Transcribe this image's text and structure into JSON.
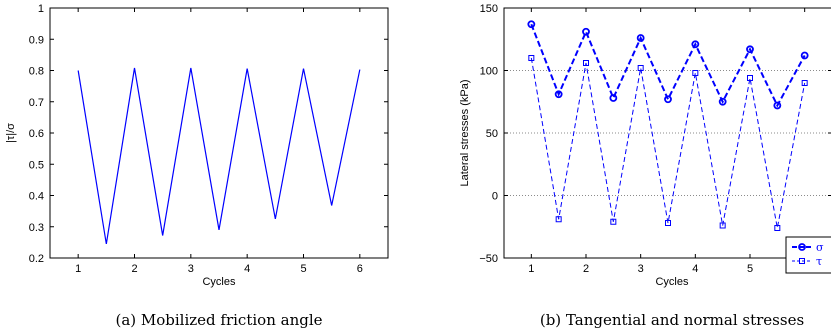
{
  "chart_data": [
    {
      "type": "line",
      "caption": "(a) Mobilized friction angle",
      "xlabel": "Cycles",
      "ylabel": "|τ|/σ",
      "xlim": [
        0.5,
        6.5
      ],
      "ylim": [
        0.2,
        1.0
      ],
      "xticks": [
        "1",
        "2",
        "3",
        "4",
        "5",
        "6"
      ],
      "yticks": [
        "0.2",
        "0.3",
        "0.4",
        "0.5",
        "0.6",
        "0.7",
        "0.8",
        "0.9",
        "1"
      ],
      "grid": false,
      "series": [
        {
          "color": "#0000ff",
          "x": [
            1,
            1.5,
            2,
            2.5,
            3,
            3.5,
            4,
            4.5,
            5,
            5.5,
            6
          ],
          "y": [
            0.8,
            0.245,
            0.808,
            0.272,
            0.808,
            0.29,
            0.806,
            0.325,
            0.806,
            0.368,
            0.803
          ]
        }
      ]
    },
    {
      "type": "line",
      "caption": "(b) Tangential and normal stresses",
      "xlabel": "Cycles",
      "ylabel": "Lateral stresses (kPa)",
      "xlim": [
        0.5,
        6.5
      ],
      "ylim": [
        -50,
        150
      ],
      "xticks": [
        "1",
        "2",
        "3",
        "4",
        "5",
        "6"
      ],
      "yticks": [
        "−50",
        "0",
        "50",
        "100",
        "150"
      ],
      "grid": "horizontal dotted",
      "legend_location": "bottom-right",
      "series": [
        {
          "name": "σ",
          "color": "#0000ff",
          "marker": "circle",
          "x": [
            1,
            1.5,
            2,
            2.5,
            3,
            3.5,
            4,
            4.5,
            5,
            5.5,
            6
          ],
          "y": [
            137,
            81,
            131,
            78,
            126,
            77,
            121,
            75,
            117,
            72,
            112
          ]
        },
        {
          "name": "τ",
          "color": "#0000ff",
          "marker": "square",
          "x": [
            1,
            1.5,
            2,
            2.5,
            3,
            3.5,
            4,
            4.5,
            5,
            5.5,
            6
          ],
          "y": [
            110,
            -19,
            106,
            -21,
            102,
            -22,
            98,
            -24,
            94,
            -26,
            90
          ]
        }
      ]
    }
  ]
}
